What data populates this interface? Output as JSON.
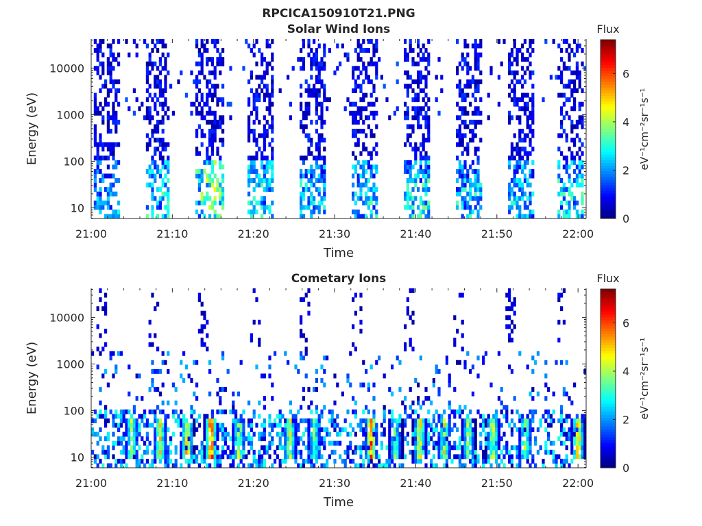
{
  "figure": {
    "title": "RPCICA150910T21.PNG"
  },
  "chart_data": [
    {
      "type": "heatmap",
      "title": "Solar Wind Ions",
      "xlabel": "Time",
      "ylabel": "Energy (eV)",
      "x_ticks": [
        "21:00",
        "21:10",
        "21:20",
        "21:30",
        "21:40",
        "21:50",
        "22:00"
      ],
      "x_range_minutes": [
        0,
        61
      ],
      "y_scale": "log",
      "y_ticks": [
        {
          "value": 10,
          "label": "10"
        },
        {
          "value": 100,
          "label": "100"
        },
        {
          "value": 1000,
          "label": "1000"
        },
        {
          "value": 10000,
          "label": "10000"
        }
      ],
      "y_range": [
        5.9,
        42000
      ],
      "colorbar": {
        "title": "Flux",
        "label": "eV⁻¹cm⁻²sr⁻¹s⁻¹",
        "range": [
          0,
          7.4
        ],
        "ticks": [
          0,
          2,
          4,
          6
        ],
        "colormap": "jet"
      },
      "bursts": [
        {
          "start": 0.3,
          "end": 3.5,
          "level": 1.0
        },
        {
          "start": 6.6,
          "end": 9.7,
          "level": 1.4
        },
        {
          "start": 13.0,
          "end": 16.3,
          "level": 1.9
        },
        {
          "start": 19.4,
          "end": 22.5,
          "level": 1.4
        },
        {
          "start": 25.8,
          "end": 29.0,
          "level": 1.2
        },
        {
          "start": 32.2,
          "end": 35.3,
          "level": 1.3
        },
        {
          "start": 38.5,
          "end": 41.7,
          "level": 1.5
        },
        {
          "start": 45.0,
          "end": 48.1,
          "level": 1.3
        },
        {
          "start": 51.3,
          "end": 54.5,
          "level": 1.3
        },
        {
          "start": 57.6,
          "end": 60.8,
          "level": 1.4
        }
      ]
    },
    {
      "type": "heatmap",
      "title": "Cometary Ions",
      "xlabel": "Time",
      "ylabel": "Energy (eV)",
      "x_ticks": [
        "21:00",
        "21:10",
        "21:20",
        "21:30",
        "21:40",
        "21:50",
        "22:00"
      ],
      "x_range_minutes": [
        0,
        61
      ],
      "y_scale": "log",
      "y_ticks": [
        {
          "value": 10,
          "label": "10"
        },
        {
          "value": 100,
          "label": "100"
        },
        {
          "value": 1000,
          "label": "1000"
        },
        {
          "value": 10000,
          "label": "10000"
        }
      ],
      "y_range": [
        5.9,
        42000
      ],
      "colorbar": {
        "title": "Flux",
        "label": "eV⁻¹cm⁻²sr⁻¹s⁻¹",
        "range": [
          0,
          7.4
        ],
        "ticks": [
          0,
          2,
          4,
          6
        ],
        "colormap": "jet"
      },
      "hotspots": [
        {
          "t": 5.0,
          "level": 4.5
        },
        {
          "t": 8.5,
          "level": 5.0
        },
        {
          "t": 11.8,
          "level": 5.5
        },
        {
          "t": 14.8,
          "level": 6.8
        },
        {
          "t": 18.2,
          "level": 4.8
        },
        {
          "t": 24.5,
          "level": 4.8
        },
        {
          "t": 27.5,
          "level": 4.0
        },
        {
          "t": 34.5,
          "level": 6.0
        },
        {
          "t": 37.5,
          "level": 4.0
        },
        {
          "t": 40.5,
          "level": 5.5
        },
        {
          "t": 43.5,
          "level": 5.0
        },
        {
          "t": 46.5,
          "level": 4.5
        },
        {
          "t": 49.5,
          "level": 5.0
        },
        {
          "t": 53.5,
          "level": 4.5
        },
        {
          "t": 60.0,
          "level": 5.8
        }
      ]
    }
  ]
}
